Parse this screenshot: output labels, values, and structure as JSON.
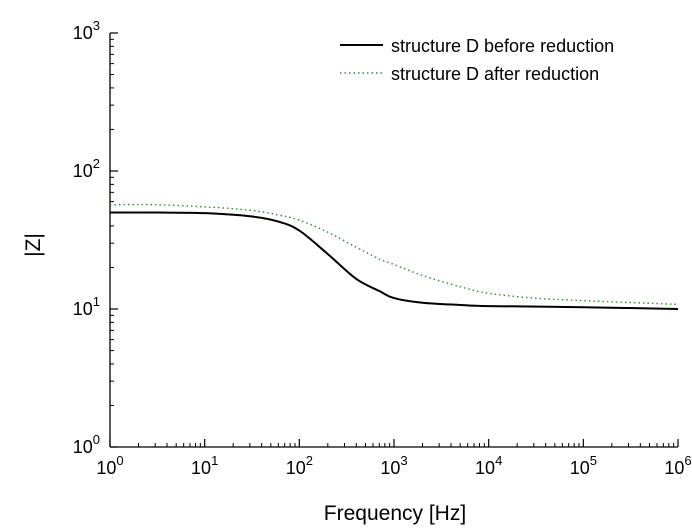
{
  "chart_data": {
    "type": "line",
    "title": "",
    "xlabel": "Frequency [Hz]",
    "ylabel": "|Z|",
    "x_scale": "log",
    "y_scale": "log",
    "xlim": [
      1,
      1000000
    ],
    "ylim": [
      1,
      1000
    ],
    "grid": false,
    "legend_position": "top-right",
    "x_ticks": [
      {
        "base": "10",
        "exp": "0"
      },
      {
        "base": "10",
        "exp": "1"
      },
      {
        "base": "10",
        "exp": "2"
      },
      {
        "base": "10",
        "exp": "3"
      },
      {
        "base": "10",
        "exp": "4"
      },
      {
        "base": "10",
        "exp": "5"
      },
      {
        "base": "10",
        "exp": "6"
      }
    ],
    "y_ticks": [
      {
        "base": "10",
        "exp": "0"
      },
      {
        "base": "10",
        "exp": "1"
      },
      {
        "base": "10",
        "exp": "2"
      },
      {
        "base": "10",
        "exp": "3"
      }
    ],
    "series": [
      {
        "name": "structure D before reduction",
        "color": "#000000",
        "style": "solid",
        "x": [
          1,
          3,
          10,
          30,
          60,
          100,
          200,
          400,
          700,
          1000,
          2000,
          5000,
          10000,
          100000,
          1000000
        ],
        "y": [
          50,
          50,
          49.5,
          47,
          43,
          37,
          25,
          16.5,
          13.5,
          12,
          11.1,
          10.7,
          10.5,
          10.3,
          10
        ]
      },
      {
        "name": "structure D after reduction",
        "color": "#2e8b2e",
        "style": "dotted",
        "x": [
          1,
          3,
          10,
          30,
          60,
          100,
          200,
          400,
          700,
          1000,
          2000,
          5000,
          10000,
          30000,
          100000,
          1000000
        ],
        "y": [
          57,
          57,
          55,
          52,
          48,
          44,
          36,
          28,
          23,
          21,
          17.5,
          14.5,
          13,
          12,
          11.5,
          10.8
        ]
      }
    ]
  }
}
